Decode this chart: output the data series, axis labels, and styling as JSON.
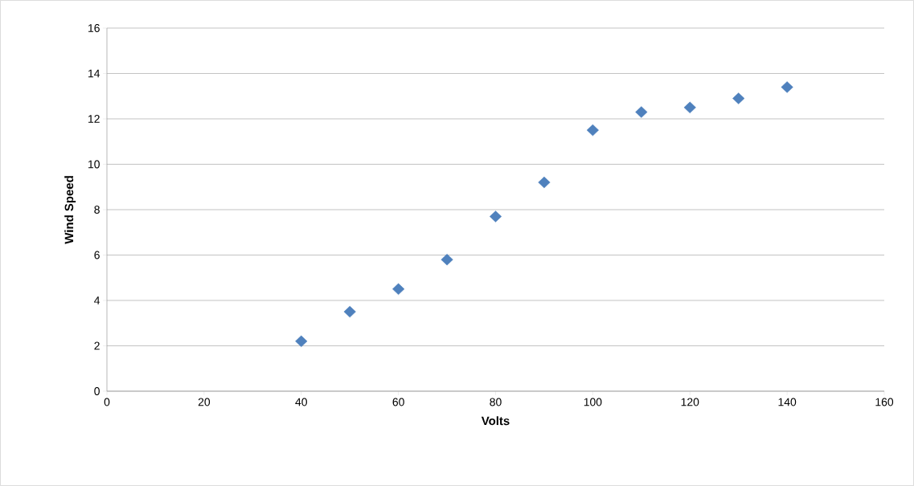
{
  "chart_data": {
    "type": "scatter",
    "xlabel": "Volts",
    "ylabel": "Wind Speed",
    "x": [
      40,
      50,
      60,
      70,
      80,
      90,
      100,
      110,
      120,
      130,
      140
    ],
    "values": [
      2.2,
      3.5,
      4.5,
      5.8,
      7.7,
      9.2,
      11.5,
      12.3,
      12.5,
      12.9,
      13.4
    ],
    "color": "#4f81bd",
    "marker": "diamond",
    "xlim": [
      0,
      160
    ],
    "xticks": [
      0,
      20,
      40,
      60,
      80,
      100,
      120,
      140,
      160
    ],
    "ylim": [
      0,
      16
    ],
    "yticks": [
      0,
      2,
      4,
      6,
      8,
      10,
      12,
      14,
      16
    ],
    "grid": "y"
  }
}
